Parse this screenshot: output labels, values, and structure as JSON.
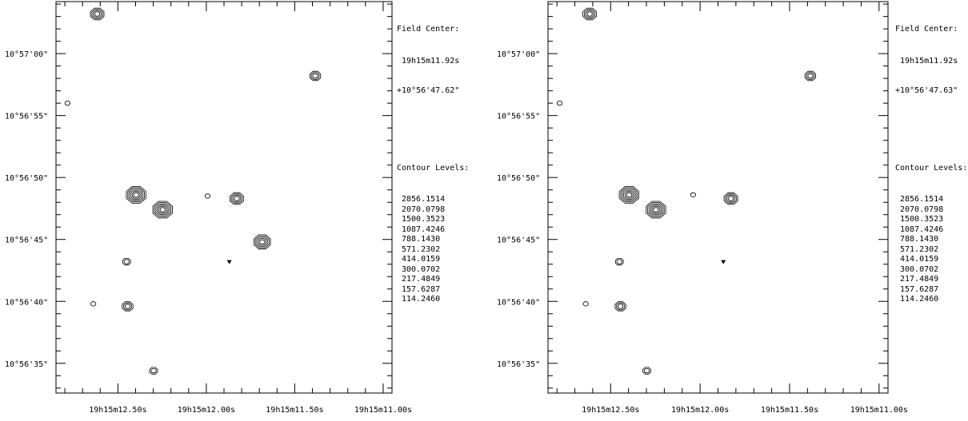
{
  "chart_data": [
    {
      "type": "contour",
      "field_center_label": "Field Center:",
      "field_center_ra": "19h15m11.92s",
      "field_center_dec": "+10°56'47.62\"",
      "contour_levels_label": "Contour Levels:",
      "contour_levels": [
        "2856.1514",
        "2070.0798",
        "1500.3523",
        "1087.4246",
        "788.1430",
        "571.2302",
        "414.0159",
        "300.0702",
        "217.4849",
        "157.6287",
        "114.2460"
      ],
      "x_ticks": [
        {
          "label": "19h15m12.50s",
          "ra_s": 12.5
        },
        {
          "label": "19h15m12.00s",
          "ra_s": 12.0
        },
        {
          "label": "19h15m11.50s",
          "ra_s": 11.5
        },
        {
          "label": "19h15m11.00s",
          "ra_s": 11.0
        }
      ],
      "y_ticks": [
        {
          "label": "10°57'00\"",
          "dec_as": 60
        },
        {
          "label": "10°56'55\"",
          "dec_as": 55
        },
        {
          "label": "10°56'50\"",
          "dec_as": 50
        },
        {
          "label": "10°56'45\"",
          "dec_as": 45
        },
        {
          "label": "10°56'40\"",
          "dec_as": 40
        },
        {
          "label": "10°56'35\"",
          "dec_as": 35
        }
      ],
      "xlim": [
        12.85,
        10.95
      ],
      "ylim": [
        32.6,
        64.2
      ],
      "sources": [
        {
          "ra_s": 12.617,
          "dec_as": 63.2,
          "levels": 4
        },
        {
          "ra_s": 11.384,
          "dec_as": 58.2,
          "levels": 3
        },
        {
          "ra_s": 12.785,
          "dec_as": 56.0,
          "levels": 1
        },
        {
          "ra_s": 12.397,
          "dec_as": 48.6,
          "levels": 6
        },
        {
          "ra_s": 12.247,
          "dec_as": 47.4,
          "levels": 6
        },
        {
          "ra_s": 11.993,
          "dec_as": 48.5,
          "levels": 1
        },
        {
          "ra_s": 11.828,
          "dec_as": 48.3,
          "levels": 4
        },
        {
          "ra_s": 11.684,
          "dec_as": 44.8,
          "levels": 5
        },
        {
          "ra_s": 12.451,
          "dec_as": 43.2,
          "levels": 2
        },
        {
          "ra_s": 12.639,
          "dec_as": 39.8,
          "levels": 1
        },
        {
          "ra_s": 12.445,
          "dec_as": 39.6,
          "levels": 3
        },
        {
          "ra_s": 12.298,
          "dec_as": 34.4,
          "levels": 2
        },
        {
          "ra_s": 11.87,
          "dec_as": 43.2,
          "levels": 0
        }
      ]
    },
    {
      "type": "contour",
      "field_center_label": "Field Center:",
      "field_center_ra": "19h15m11.92s",
      "field_center_dec": "+10°56'47.63\"",
      "contour_levels_label": "Contour Levels:",
      "contour_levels": [
        "2856.1514",
        "2070.0798",
        "1500.3523",
        "1087.4246",
        "788.1430",
        "571.2302",
        "414.0159",
        "300.0702",
        "217.4849",
        "157.6287",
        "114.2460"
      ],
      "x_ticks": [
        {
          "label": "19h15m12.50s",
          "ra_s": 12.5
        },
        {
          "label": "19h15m12.00s",
          "ra_s": 12.0
        },
        {
          "label": "19h15m11.50s",
          "ra_s": 11.5
        },
        {
          "label": "19h15m11.00s",
          "ra_s": 11.0
        }
      ],
      "y_ticks": [
        {
          "label": "10°57'00\"",
          "dec_as": 60
        },
        {
          "label": "10°56'55\"",
          "dec_as": 55
        },
        {
          "label": "10°56'50\"",
          "dec_as": 50
        },
        {
          "label": "10°56'45\"",
          "dec_as": 45
        },
        {
          "label": "10°56'40\"",
          "dec_as": 40
        },
        {
          "label": "10°56'35\"",
          "dec_as": 35
        }
      ],
      "xlim": [
        12.85,
        10.95
      ],
      "ylim": [
        32.6,
        64.2
      ],
      "sources": [
        {
          "ra_s": 12.617,
          "dec_as": 63.2,
          "levels": 4
        },
        {
          "ra_s": 11.384,
          "dec_as": 58.2,
          "levels": 3
        },
        {
          "ra_s": 12.785,
          "dec_as": 56.0,
          "levels": 1
        },
        {
          "ra_s": 12.397,
          "dec_as": 48.6,
          "levels": 6
        },
        {
          "ra_s": 12.247,
          "dec_as": 47.4,
          "levels": 6
        },
        {
          "ra_s": 12.039,
          "dec_as": 48.6,
          "levels": 1
        },
        {
          "ra_s": 11.828,
          "dec_as": 48.3,
          "levels": 4
        },
        {
          "ra_s": 12.451,
          "dec_as": 43.2,
          "levels": 2
        },
        {
          "ra_s": 12.639,
          "dec_as": 39.8,
          "levels": 1
        },
        {
          "ra_s": 12.445,
          "dec_as": 39.6,
          "levels": 3
        },
        {
          "ra_s": 12.298,
          "dec_as": 34.4,
          "levels": 2
        },
        {
          "ra_s": 11.87,
          "dec_as": 43.2,
          "levels": 0
        }
      ]
    }
  ]
}
